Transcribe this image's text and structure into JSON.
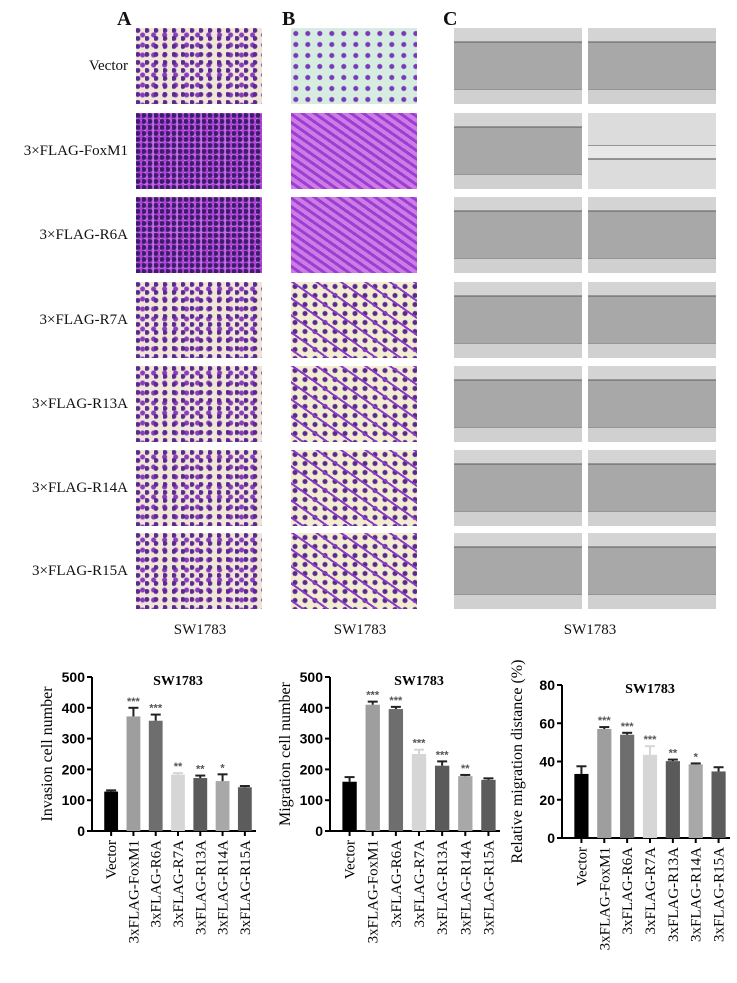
{
  "panels": {
    "A": {
      "letter": "A",
      "caption": "SW1783"
    },
    "B": {
      "letter": "B",
      "caption": "SW1783"
    },
    "C": {
      "letter": "C",
      "caption": "SW1783"
    }
  },
  "row_labels": [
    "Vector",
    "3×FLAG-FoxM1",
    "3×FLAG-R6A",
    "3×FLAG-R7A",
    "3×FLAG-R13A",
    "3×FLAG-R14A",
    "3×FLAG-R15A"
  ],
  "chart_data": [
    {
      "type": "bar",
      "title": "SW1783",
      "xlabel": "",
      "ylabel": "Invasion cell number",
      "ylim": [
        0,
        500
      ],
      "yticks": [
        0,
        100,
        200,
        300,
        400,
        500
      ],
      "categories": [
        "Vector",
        "3xFLAG-FoxM1",
        "3xFLAG-R6A",
        "3xFLAG-R7A",
        "3xFLAG-R13A",
        "3xFLAG-R14A",
        "3xFLAG-R15A"
      ],
      "values": [
        128,
        372,
        358,
        183,
        172,
        162,
        142
      ],
      "errors": [
        4,
        28,
        20,
        5,
        8,
        22,
        4
      ],
      "significance": [
        "",
        "***",
        "***",
        "**",
        "**",
        "*",
        ""
      ],
      "colors": [
        "#000000",
        "#9e9e9e",
        "#6e6e6e",
        "#d6d6d6",
        "#5a5a5a",
        "#a8a8a8",
        "#5c5c5c"
      ]
    },
    {
      "type": "bar",
      "title": "SW1783",
      "xlabel": "",
      "ylabel": "Migration cell number",
      "ylim": [
        0,
        500
      ],
      "yticks": [
        0,
        100,
        200,
        300,
        400,
        500
      ],
      "categories": [
        "Vector",
        "3xFLAG-FoxM1",
        "3xFLAG-R6A",
        "3xFLAG-R7A",
        "3xFLAG-R13A",
        "3xFLAG-R14A",
        "3xFLAG-R15A"
      ],
      "values": [
        160,
        410,
        396,
        250,
        212,
        178,
        166
      ],
      "errors": [
        15,
        10,
        7,
        14,
        14,
        4,
        5
      ],
      "significance": [
        "",
        "***",
        "***",
        "***",
        "***",
        "**",
        ""
      ],
      "colors": [
        "#000000",
        "#9e9e9e",
        "#6e6e6e",
        "#d6d6d6",
        "#5a5a5a",
        "#a8a8a8",
        "#5c5c5c"
      ]
    },
    {
      "type": "bar",
      "title": "SW1783",
      "xlabel": "",
      "ylabel": "Relative migration distance (%)",
      "ylim": [
        0,
        80
      ],
      "yticks": [
        0,
        20,
        40,
        60,
        80
      ],
      "categories": [
        "Vector",
        "3xFLAG-FoxM1",
        "3xFLAG-R6A",
        "3xFLAG-R7A",
        "3xFLAG-R13A",
        "3xFLAG-R14A",
        "3xFLAG-R15A"
      ],
      "values": [
        33.5,
        57,
        54,
        43.5,
        40.2,
        38.5,
        34.8
      ],
      "errors": [
        4,
        1,
        1,
        4.5,
        0.8,
        0.5,
        2.2
      ],
      "significance": [
        "",
        "***",
        "***",
        "***",
        "**",
        "*",
        ""
      ],
      "colors": [
        "#000000",
        "#9e9e9e",
        "#6e6e6e",
        "#d6d6d6",
        "#5a5a5a",
        "#a8a8a8",
        "#5c5c5c"
      ]
    }
  ]
}
